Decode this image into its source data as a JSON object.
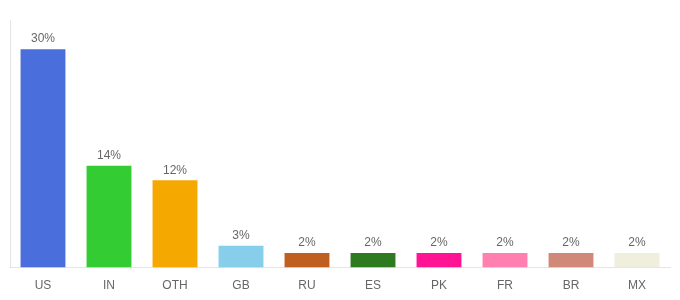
{
  "chart_data": {
    "type": "bar",
    "categories": [
      "US",
      "IN",
      "OTH",
      "GB",
      "RU",
      "ES",
      "PK",
      "FR",
      "BR",
      "MX"
    ],
    "values": [
      30,
      14,
      12,
      3,
      2,
      2,
      2,
      2,
      2,
      2
    ],
    "value_labels": [
      "30%",
      "14%",
      "12%",
      "3%",
      "2%",
      "2%",
      "2%",
      "2%",
      "2%",
      "2%"
    ],
    "colors": [
      "#4a6fdc",
      "#33cc33",
      "#f5a800",
      "#87ceeb",
      "#c06020",
      "#2d7a20",
      "#ff1493",
      "#ff80b0",
      "#d08878",
      "#f0eedc"
    ],
    "ylim": [
      0,
      34
    ],
    "grid": false,
    "data_labels": true,
    "tick_labels": "x"
  }
}
